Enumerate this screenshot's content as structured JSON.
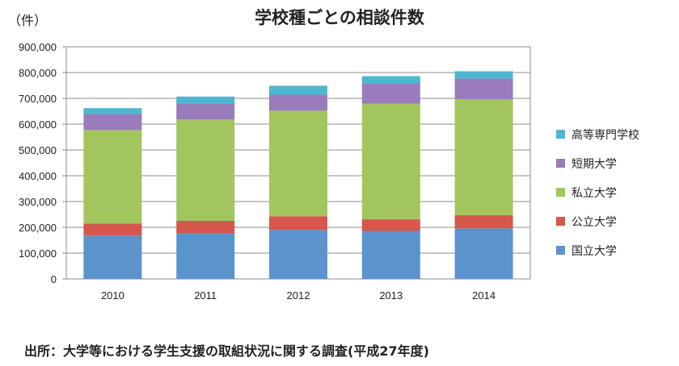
{
  "chart_data": {
    "type": "bar",
    "stacked": true,
    "title": "学校種ごとの相談件数",
    "unit_label": "（件）",
    "xlabel": "",
    "ylabel": "",
    "categories": [
      "2010",
      "2011",
      "2012",
      "2013",
      "2014"
    ],
    "ylim": [
      0,
      900000
    ],
    "yticks": [
      0,
      100000,
      200000,
      300000,
      400000,
      500000,
      600000,
      700000,
      800000,
      900000
    ],
    "ytick_labels": [
      "0",
      "100,000",
      "200,000",
      "300,000",
      "400,000",
      "500,000",
      "600,000",
      "700,000",
      "800,000",
      "900,000"
    ],
    "grid": true,
    "legend_position": "right",
    "series": [
      {
        "name": "国立大学",
        "color": "#5b93cd",
        "values": [
          168000,
          178000,
          190000,
          186000,
          196000
        ]
      },
      {
        "name": "公立大学",
        "color": "#d6574d",
        "values": [
          47000,
          47000,
          53000,
          45000,
          51000
        ]
      },
      {
        "name": "私立大学",
        "color": "#a3c55e",
        "values": [
          362000,
          393000,
          409000,
          448000,
          450000
        ]
      },
      {
        "name": "短期大学",
        "color": "#9a7bbc",
        "values": [
          62000,
          62000,
          62000,
          80000,
          80000
        ]
      },
      {
        "name": "高等専門学校",
        "color": "#4db7d0",
        "values": [
          23000,
          27000,
          35000,
          27000,
          28000
        ]
      }
    ]
  },
  "source_note": "出所：大学等における学生支援の取組状況に関する調査(平成27年度)"
}
